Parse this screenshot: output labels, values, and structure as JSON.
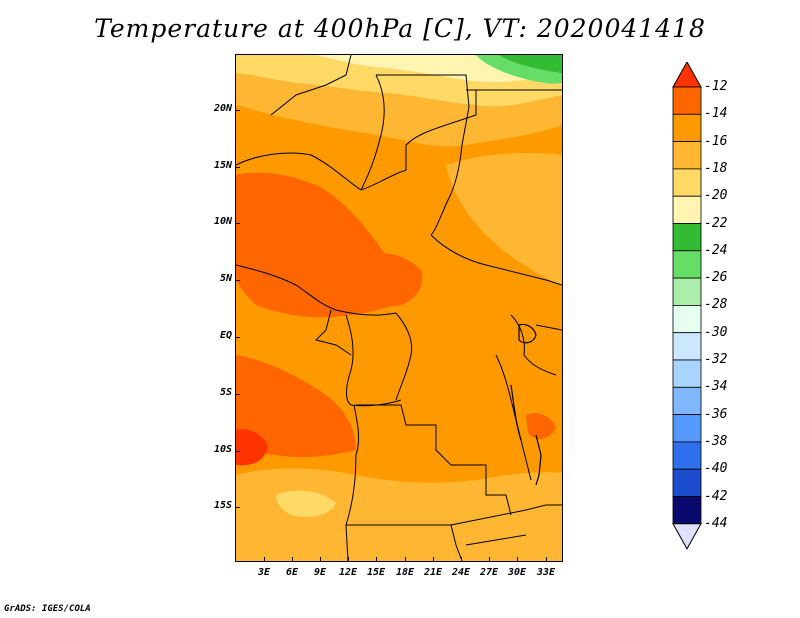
{
  "title": "Temperature at 400hPa [C], VT: 2020041418",
  "footer": "GrADS: IGES/COLA",
  "lat_labels": [
    "20N",
    "15N",
    "10N",
    "5N",
    "EQ",
    "5S",
    "10S",
    "15S"
  ],
  "lon_labels": [
    "3E",
    "6E",
    "9E",
    "12E",
    "15E",
    "18E",
    "21E",
    "24E",
    "27E",
    "30E",
    "33E"
  ],
  "colorbar": {
    "labels": [
      "-12",
      "-14",
      "-16",
      "-18",
      "-20",
      "-22",
      "-24",
      "-26",
      "-28",
      "-30",
      "-32",
      "-34",
      "-36",
      "-38",
      "-40",
      "-42",
      "-44"
    ],
    "colors": [
      "#ff3300",
      "#ff6600",
      "#ff9900",
      "#ffb733",
      "#ffd966",
      "#fff5b0",
      "#33bb33",
      "#66dd66",
      "#aaeeaa",
      "#e6fff0",
      "#cce8ff",
      "#a8d4ff",
      "#7fb8ff",
      "#5599ff",
      "#2f6fee",
      "#1b4dcc",
      "#0a0a6e",
      "#e0e0ff"
    ]
  },
  "colors": {
    "dark_orange": "#ff6600",
    "orange": "#ff9900",
    "light_orange": "#ffb733",
    "yellow": "#ffd966",
    "pale_yellow": "#fff5b0",
    "green": "#33bb33",
    "light_green": "#66dd66"
  }
}
